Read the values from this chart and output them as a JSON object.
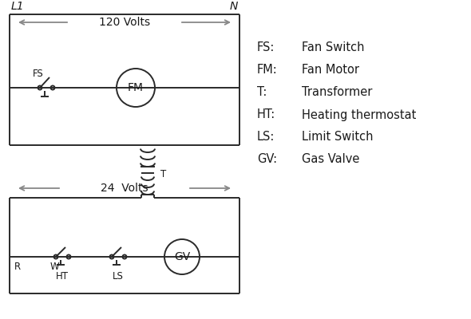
{
  "bg_color": "#ffffff",
  "line_color": "#2a2a2a",
  "arrow_color": "#888888",
  "legend": [
    [
      "FS:",
      "Fan Switch"
    ],
    [
      "FM:",
      "Fan Motor"
    ],
    [
      "T:",
      "Transformer"
    ],
    [
      "HT:",
      "Heating thermostat"
    ],
    [
      "LS:",
      "Limit Switch"
    ],
    [
      "GV:",
      "Gas Valve"
    ]
  ],
  "L1_label": "L1",
  "N_label": "N",
  "volts120": "120 Volts",
  "volts24": "24  Volts",
  "T_label": "T",
  "FS_label": "FS",
  "FM_label": "FM",
  "GV_label": "GV",
  "HT_label": "HT",
  "LS_label": "LS",
  "R_label": "R",
  "W_label": "W"
}
